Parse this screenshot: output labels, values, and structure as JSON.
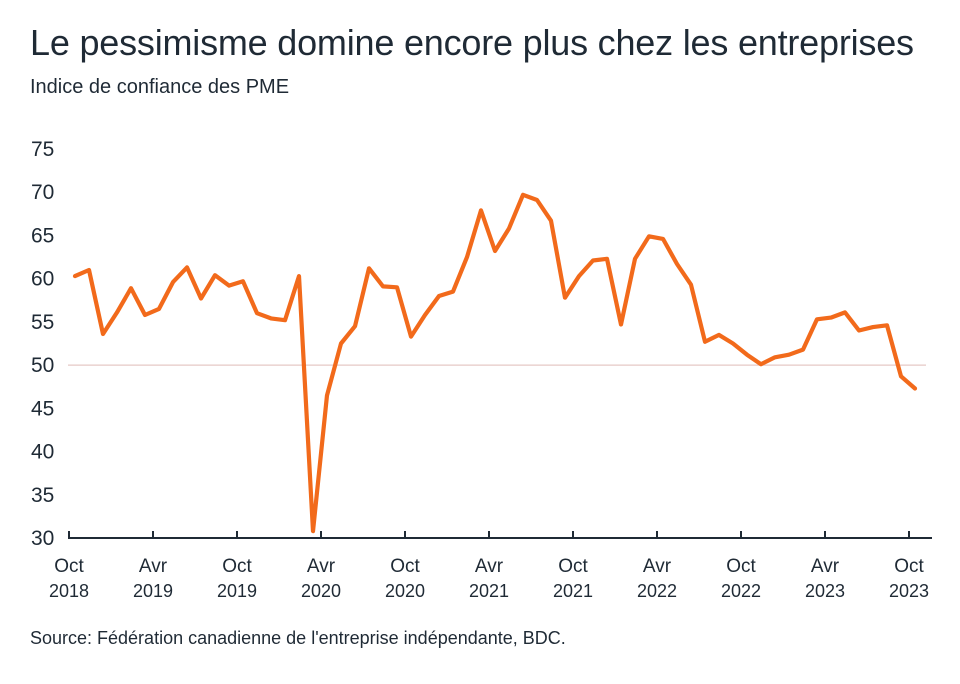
{
  "chart_data": {
    "type": "line",
    "title": "Le pessimisme domine encore plus chez les entreprises",
    "subtitle": "Indice de confiance des PME",
    "source": "Source: Fédération canadienne de l'entreprise indépendante, BDC.",
    "xlabel": "",
    "ylabel": "",
    "ylim": [
      30,
      75
    ],
    "yticks": [
      "75",
      "70",
      "65",
      "60",
      "55",
      "50",
      "45",
      "40",
      "35",
      "30"
    ],
    "xticks": [
      {
        "month": "Oct",
        "year": "2018",
        "index": 0
      },
      {
        "month": "Avr",
        "year": "2019",
        "index": 6
      },
      {
        "month": "Oct",
        "year": "2019",
        "index": 12
      },
      {
        "month": "Avr",
        "year": "2020",
        "index": 18
      },
      {
        "month": "Oct",
        "year": "2020",
        "index": 24
      },
      {
        "month": "Avr",
        "year": "2021",
        "index": 30
      },
      {
        "month": "Oct",
        "year": "2021",
        "index": 36
      },
      {
        "month": "Avr",
        "year": "2022",
        "index": 42
      },
      {
        "month": "Oct",
        "year": "2022",
        "index": 48
      },
      {
        "month": "Avr",
        "year": "2023",
        "index": 54
      },
      {
        "month": "Oct",
        "year": "2023",
        "index": 60
      }
    ],
    "reference_line": 50,
    "series": [
      {
        "name": "Indice de confiance des PME",
        "color": "#f26a1b",
        "x_start": "Oct 2018",
        "frequency": "monthly",
        "values": [
          60.3,
          61.0,
          53.6,
          56.1,
          58.9,
          55.8,
          56.5,
          59.6,
          61.3,
          57.7,
          60.4,
          59.2,
          59.7,
          56.0,
          55.4,
          55.2,
          60.3,
          30.8,
          46.5,
          52.5,
          54.5,
          61.2,
          59.1,
          59.0,
          53.3,
          55.8,
          58.0,
          58.5,
          62.5,
          67.9,
          63.2,
          65.8,
          69.7,
          69.1,
          66.7,
          57.8,
          60.3,
          62.1,
          62.3,
          54.7,
          62.3,
          64.9,
          64.6,
          61.7,
          59.3,
          52.7,
          53.5,
          52.5,
          51.2,
          50.1,
          50.9,
          51.2,
          51.8,
          55.3,
          55.5,
          56.1,
          54.0,
          54.4,
          54.6,
          48.7,
          47.3
        ]
      }
    ]
  }
}
